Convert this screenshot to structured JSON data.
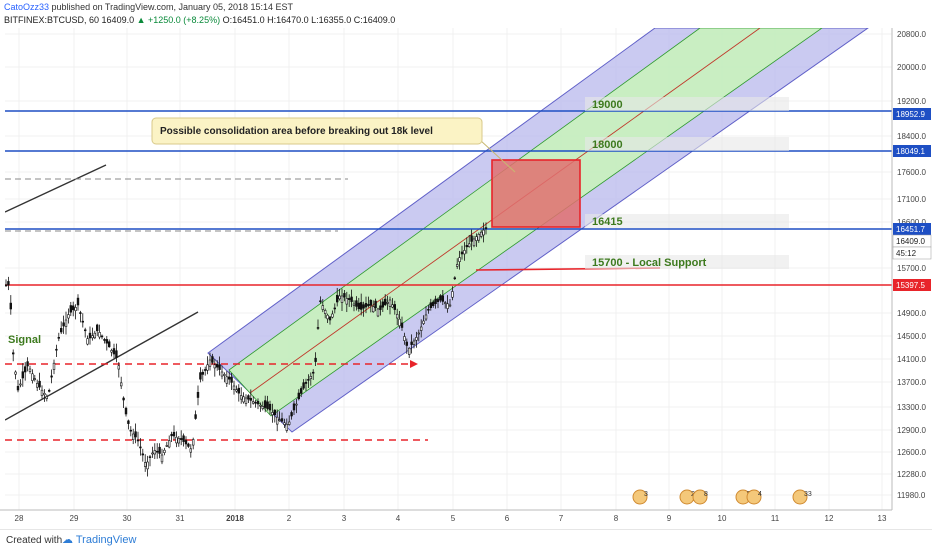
{
  "header": {
    "author": "CatoOzz33",
    "published": "published on TradingView.com, January 05, 2018 15:14 EST",
    "symbol": "BITFINEX:BTCUSD, 60",
    "last": "16409.0",
    "change": "▲ +1250.0 (+8.25%)",
    "ohlc": "O:16451.0 H:16470.0 L:16355.0 C:16409.0"
  },
  "footer": {
    "created_with": "Created with",
    "brand": "TradingView"
  },
  "annotations": {
    "callout": "Possible consolidation area before breaking out 18k level",
    "level_19000": "19000",
    "level_18000": "18000",
    "level_16415": "16415",
    "support": "15700 - Local Support",
    "signal": "Signal"
  },
  "price_axis": {
    "ticks": [
      "20800.0",
      "20000.0",
      "19200.0",
      "18400.0",
      "17600.0",
      "17100.0",
      "16600.0",
      "15700.0",
      "14900.0",
      "14500.0",
      "14100.0",
      "13700.0",
      "13300.0",
      "12900.0",
      "12600.0",
      "12280.0",
      "11980.0"
    ],
    "tags": [
      {
        "text": "18952.9",
        "bg": "#1e4fc4",
        "fg": "#ffffff"
      },
      {
        "text": "18049.1",
        "bg": "#1e4fc4",
        "fg": "#ffffff"
      },
      {
        "text": "16451.7",
        "bg": "#1e4fc4",
        "fg": "#ffffff"
      },
      {
        "text": "16409.0",
        "bg": "#ffffff",
        "fg": "#222222"
      },
      {
        "text": "45:12",
        "bg": "#ffffff",
        "fg": "#222222"
      },
      {
        "text": "15397.5",
        "bg": "#e8242a",
        "fg": "#ffffff"
      }
    ]
  },
  "time_axis": {
    "labels": [
      "28",
      "29",
      "30",
      "31",
      "2018",
      "2",
      "3",
      "4",
      "5",
      "6",
      "7",
      "8",
      "9",
      "10",
      "11",
      "12",
      "13"
    ]
  },
  "events": [
    "3",
    "2",
    "8",
    "5",
    "4",
    "33"
  ],
  "colors": {
    "blue_line": "#1e4fc4",
    "red_line": "#e8242a",
    "channel_outer": "#8c8cdc",
    "channel_inner": "#b7e8b0",
    "box": "#e07070",
    "callout_bg": "#fbf3c5"
  }
}
